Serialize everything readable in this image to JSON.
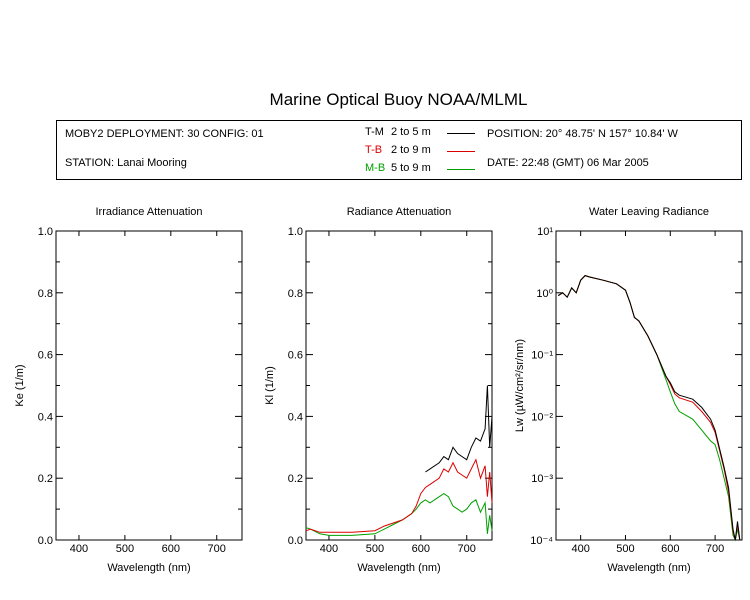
{
  "title": "Marine Optical Buoy NOAA/MLML",
  "info": {
    "deployment": "MOBY2 DEPLOYMENT: 30 CONFIG: 01",
    "station": "STATION: Lanai Mooring",
    "position": "POSITION: 20° 48.75' N   157° 10.84' W",
    "date": "DATE: 22:48 (GMT) 06 Mar 2005"
  },
  "legend": [
    {
      "code": "T-M",
      "range": "2 to 5  m",
      "color": "#000000"
    },
    {
      "code": "T-B",
      "range": "2 to 9  m",
      "color": "#dd0000"
    },
    {
      "code": "M-B",
      "range": "5 to 9  m",
      "color": "#00a000"
    }
  ],
  "colors": {
    "T-M": "#000000",
    "T-B": "#dd0000",
    "M-B": "#00a000"
  },
  "chart_data": [
    {
      "type": "line",
      "title": "Irradiance Attenuation",
      "xlabel": "Wavelength (nm)",
      "ylabel": "Ke  (1/m)",
      "xlim": [
        350,
        755
      ],
      "ylim": [
        0,
        1
      ],
      "xticks": [
        "400",
        "500",
        "600",
        "700"
      ],
      "yticks": [
        "0.0",
        "0.2",
        "0.4",
        "0.6",
        "0.8",
        "1.0"
      ],
      "series": []
    },
    {
      "type": "line",
      "title": "Radiance Attenuation",
      "xlabel": "Wavelength (nm)",
      "ylabel": "Kl  (1/m)",
      "xlim": [
        350,
        755
      ],
      "ylim": [
        0,
        1
      ],
      "xticks": [
        "400",
        "500",
        "600",
        "700"
      ],
      "yticks": [
        "0.0",
        "0.2",
        "0.4",
        "0.6",
        "0.8",
        "1.0"
      ],
      "series": [
        {
          "name": "T-M",
          "x": [
            610,
            620,
            640,
            650,
            660,
            670,
            680,
            690,
            700,
            710,
            720,
            730,
            740,
            745,
            750,
            755
          ],
          "y": [
            0.22,
            0.23,
            0.25,
            0.27,
            0.26,
            0.3,
            0.28,
            0.27,
            0.26,
            0.3,
            0.33,
            0.32,
            0.36,
            0.5,
            0.3,
            0.4
          ]
        },
        {
          "name": "T-B",
          "x": [
            350,
            360,
            380,
            400,
            450,
            500,
            520,
            540,
            560,
            580,
            590,
            600,
            610,
            620,
            640,
            650,
            660,
            670,
            680,
            690,
            700,
            710,
            720,
            730,
            740,
            745,
            750,
            755
          ],
          "y": [
            0.03,
            0.035,
            0.025,
            0.025,
            0.025,
            0.03,
            0.045,
            0.055,
            0.065,
            0.085,
            0.11,
            0.15,
            0.17,
            0.18,
            0.2,
            0.23,
            0.22,
            0.25,
            0.22,
            0.21,
            0.2,
            0.23,
            0.26,
            0.2,
            0.24,
            0.14,
            0.22,
            0.12
          ]
        },
        {
          "name": "M-B",
          "x": [
            350,
            360,
            380,
            400,
            450,
            500,
            520,
            540,
            560,
            580,
            590,
            600,
            610,
            620,
            640,
            650,
            660,
            670,
            680,
            690,
            700,
            710,
            720,
            730,
            740,
            745,
            750,
            755
          ],
          "y": [
            0.04,
            0.035,
            0.02,
            0.015,
            0.015,
            0.02,
            0.035,
            0.05,
            0.065,
            0.085,
            0.1,
            0.12,
            0.13,
            0.12,
            0.14,
            0.15,
            0.14,
            0.11,
            0.1,
            0.09,
            0.1,
            0.12,
            0.13,
            0.09,
            0.12,
            0.02,
            0.08,
            0.03
          ]
        }
      ]
    },
    {
      "type": "line",
      "title": "Water Leaving Radiance",
      "xlabel": "Wavelength (nm)",
      "ylabel": "Lw  (µW/cm²/sr/nm)",
      "yscale": "log",
      "xlim": [
        345,
        760
      ],
      "ylim": [
        0.0001,
        10
      ],
      "xticks": [
        "400",
        "500",
        "600",
        "700"
      ],
      "yticks": [
        "10⁻⁴",
        "10⁻³",
        "10⁻²",
        "10⁻¹",
        "10⁰",
        "10¹"
      ],
      "series": [
        {
          "name": "T-M",
          "x": [
            350,
            360,
            370,
            380,
            390,
            400,
            410,
            420,
            450,
            480,
            500,
            510,
            520,
            530,
            550,
            570,
            590,
            600,
            610,
            620,
            650,
            670,
            690,
            700,
            710,
            720,
            730,
            740,
            745,
            750,
            755
          ],
          "y": [
            0.9,
            1.0,
            0.85,
            1.2,
            1.0,
            1.6,
            1.9,
            1.8,
            1.6,
            1.4,
            1.1,
            0.7,
            0.4,
            0.35,
            0.2,
            0.1,
            0.045,
            0.035,
            0.025,
            0.022,
            0.019,
            0.014,
            0.009,
            0.006,
            0.003,
            0.0015,
            0.0007,
            0.00015,
            0.0001,
            0.0002,
            0.0001
          ]
        },
        {
          "name": "T-B",
          "x": [
            350,
            360,
            370,
            380,
            390,
            400,
            410,
            420,
            450,
            480,
            500,
            510,
            520,
            530,
            550,
            570,
            590,
            600,
            610,
            620,
            650,
            670,
            690,
            700,
            710,
            720,
            730,
            740,
            745,
            750,
            755
          ],
          "y": [
            0.9,
            1.0,
            0.85,
            1.2,
            1.0,
            1.6,
            1.9,
            1.8,
            1.6,
            1.4,
            1.1,
            0.7,
            0.4,
            0.35,
            0.2,
            0.1,
            0.045,
            0.033,
            0.023,
            0.02,
            0.017,
            0.012,
            0.008,
            0.0055,
            0.0028,
            0.0014,
            0.0006,
            0.00014,
            0.0001,
            0.00018,
            0.0001
          ]
        },
        {
          "name": "M-B",
          "x": [
            350,
            360,
            370,
            380,
            390,
            400,
            410,
            420,
            450,
            480,
            500,
            510,
            520,
            530,
            550,
            570,
            590,
            600,
            610,
            620,
            650,
            670,
            690,
            700,
            710,
            720,
            730,
            740,
            745,
            750,
            755
          ],
          "y": [
            0.9,
            1.0,
            0.85,
            1.2,
            1.0,
            1.6,
            1.9,
            1.8,
            1.6,
            1.4,
            1.1,
            0.7,
            0.4,
            0.35,
            0.2,
            0.1,
            0.04,
            0.025,
            0.016,
            0.012,
            0.009,
            0.006,
            0.004,
            0.0035,
            0.002,
            0.001,
            0.0005,
            0.00012,
            0.0001,
            0.00015,
            0.0001
          ]
        }
      ]
    }
  ]
}
